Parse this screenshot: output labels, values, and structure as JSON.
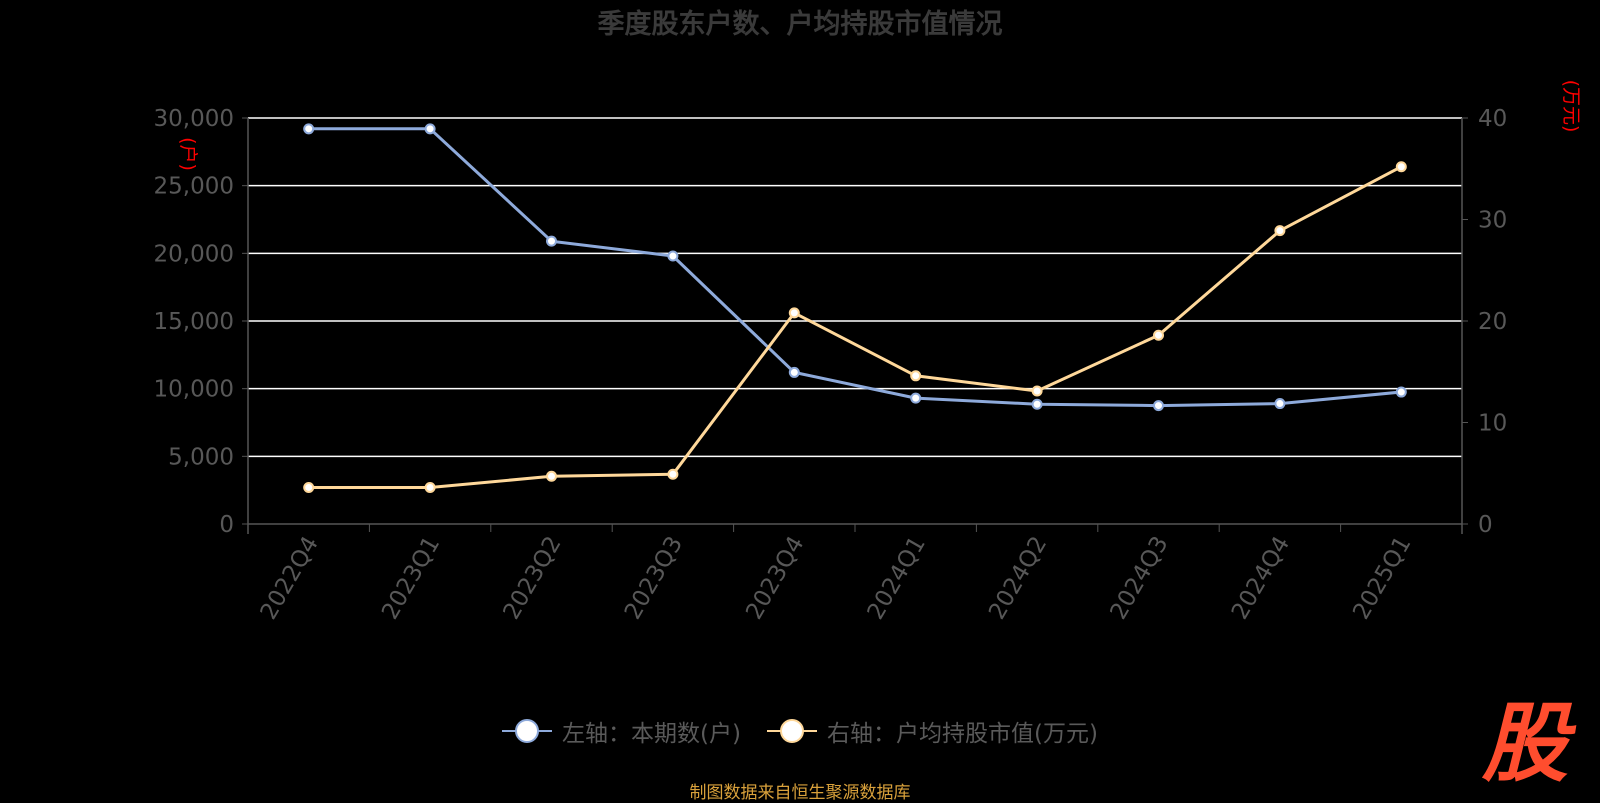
{
  "chart_data": {
    "type": "line",
    "title": "季度股东户数、户均持股市值情况",
    "categories": [
      "2022Q4",
      "2023Q1",
      "2023Q2",
      "2023Q3",
      "2023Q4",
      "2024Q1",
      "2024Q2",
      "2024Q3",
      "2024Q4",
      "2025Q1"
    ],
    "series": [
      {
        "name": "左轴：本期数(户)",
        "axis": "left",
        "color": "#8eaadb",
        "values": [
          29200,
          29200,
          20900,
          19800,
          11200,
          9300,
          8850,
          8750,
          8900,
          9750
        ]
      },
      {
        "name": "右轴：户均持股市值(万元)",
        "axis": "right",
        "color": "#ffd89a",
        "values": [
          3.6,
          3.6,
          4.7,
          4.9,
          20.8,
          14.6,
          13.1,
          18.6,
          28.9,
          35.2
        ]
      }
    ],
    "y_left": {
      "label": "(户)",
      "ylim": [
        0,
        30000
      ],
      "ticks": [
        "0",
        "5,000",
        "10,000",
        "15,000",
        "20,000",
        "25,000",
        "30,000"
      ]
    },
    "y_right": {
      "label": "(万元)",
      "ylim": [
        0,
        40
      ],
      "ticks": [
        "0",
        "10",
        "20",
        "30",
        "40"
      ]
    },
    "grid": true,
    "legend_position": "bottom"
  },
  "source_text": "制图数据来自恒生聚源数据库",
  "logo_text": "股",
  "colors": {
    "background": "#000000",
    "grid": "#ffffff",
    "axis": "#555555",
    "tick_text": "#585858",
    "axis_label": "#ff0000",
    "title": "#3a3a3a"
  }
}
